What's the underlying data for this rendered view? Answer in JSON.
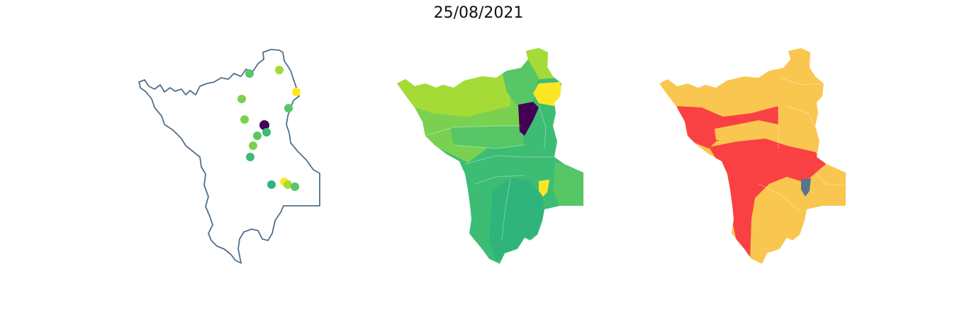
{
  "title": "25/08/2021",
  "colors": {
    "outline": "#4f6f8c",
    "viridis_dark": "#440154",
    "viridis_teal": "#2fb47c",
    "viridis_green": "#3dbc74",
    "viridis_mid": "#56c667",
    "viridis_light": "#7ad151",
    "viridis_lime": "#a5db36",
    "viridis_yellow": "#fde725",
    "risk_red": "#f94144",
    "risk_yellow": "#f9c74f",
    "risk_slate": "#577590"
  },
  "map_points": [
    {
      "color": "viridis_mid"
    },
    {
      "color": "viridis_lime"
    },
    {
      "color": "viridis_yellow"
    },
    {
      "color": "viridis_light"
    },
    {
      "color": "viridis_mid"
    },
    {
      "color": "viridis_light"
    },
    {
      "color": "viridis_dark"
    },
    {
      "color": "viridis_green"
    },
    {
      "color": "viridis_mid"
    },
    {
      "color": "viridis_light"
    },
    {
      "color": "viridis_green"
    },
    {
      "color": "viridis_teal"
    },
    {
      "color": "viridis_yellow"
    },
    {
      "color": "viridis_lime"
    },
    {
      "color": "viridis_mid"
    }
  ]
}
